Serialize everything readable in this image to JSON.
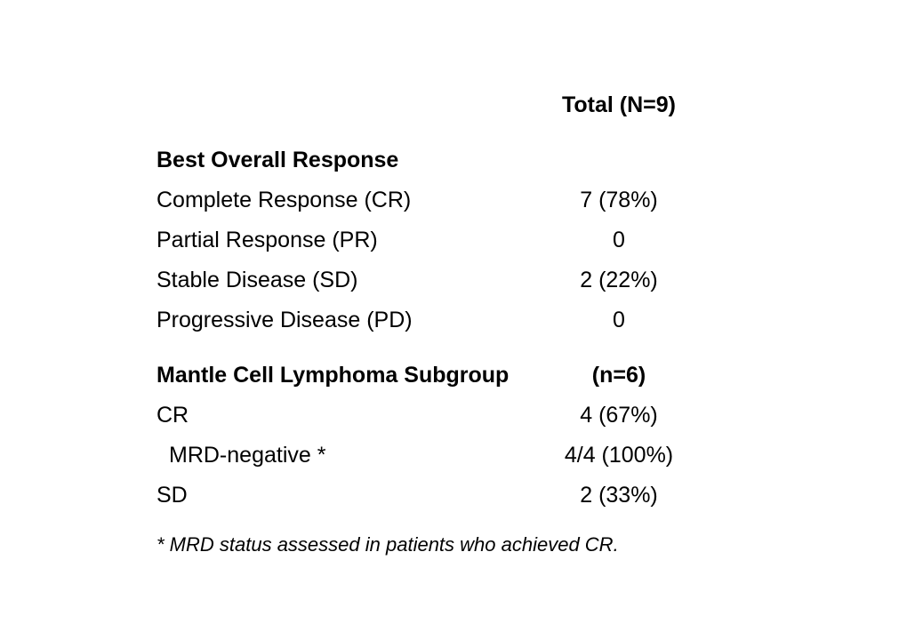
{
  "table": {
    "column_header": "Total (N=9)",
    "section1": {
      "title": "Best Overall Response",
      "rows": [
        {
          "label": "Complete Response (CR)",
          "value": "7 (78%)"
        },
        {
          "label": "Partial Response (PR)",
          "value": "0"
        },
        {
          "label": "Stable Disease (SD)",
          "value": "2 (22%)"
        },
        {
          "label": "Progressive Disease (PD)",
          "value": "0"
        }
      ]
    },
    "section2": {
      "title": "Mantle Cell Lymphoma Subgroup",
      "count": "(n=6)",
      "rows": [
        {
          "label": "CR",
          "value": "4 (67%)"
        },
        {
          "label": "MRD-negative *",
          "value": "4/4 (100%)"
        },
        {
          "label": "SD",
          "value": "2 (33%)"
        }
      ]
    }
  },
  "footnote": "* MRD status assessed in patients who achieved CR."
}
